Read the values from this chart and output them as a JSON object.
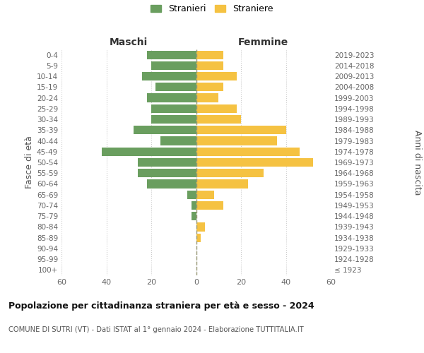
{
  "age_groups": [
    "100+",
    "95-99",
    "90-94",
    "85-89",
    "80-84",
    "75-79",
    "70-74",
    "65-69",
    "60-64",
    "55-59",
    "50-54",
    "45-49",
    "40-44",
    "35-39",
    "30-34",
    "25-29",
    "20-24",
    "15-19",
    "10-14",
    "5-9",
    "0-4"
  ],
  "birth_years": [
    "≤ 1923",
    "1924-1928",
    "1929-1933",
    "1934-1938",
    "1939-1943",
    "1944-1948",
    "1949-1953",
    "1954-1958",
    "1959-1963",
    "1964-1968",
    "1969-1973",
    "1974-1978",
    "1979-1983",
    "1984-1988",
    "1989-1993",
    "1994-1998",
    "1999-2003",
    "2004-2008",
    "2009-2013",
    "2014-2018",
    "2019-2023"
  ],
  "males": [
    0,
    0,
    0,
    0,
    0,
    2,
    2,
    4,
    22,
    26,
    26,
    42,
    16,
    28,
    20,
    20,
    22,
    18,
    24,
    20,
    22
  ],
  "females": [
    0,
    0,
    0,
    2,
    4,
    0,
    12,
    8,
    23,
    30,
    52,
    46,
    36,
    40,
    20,
    18,
    10,
    12,
    18,
    12,
    12
  ],
  "male_color": "#6a9e5f",
  "female_color": "#f5c242",
  "background_color": "#ffffff",
  "grid_color": "#cccccc",
  "xlim": 60,
  "title": "Popolazione per cittadinanza straniera per età e sesso - 2024",
  "subtitle": "COMUNE DI SUTRI (VT) - Dati ISTAT al 1° gennaio 2024 - Elaborazione TUTTITALIA.IT",
  "ylabel_left": "Fasce di età",
  "ylabel_right": "Anni di nascita",
  "legend_stranieri": "Stranieri",
  "legend_straniere": "Straniere",
  "maschi_label": "Maschi",
  "femmine_label": "Femmine"
}
